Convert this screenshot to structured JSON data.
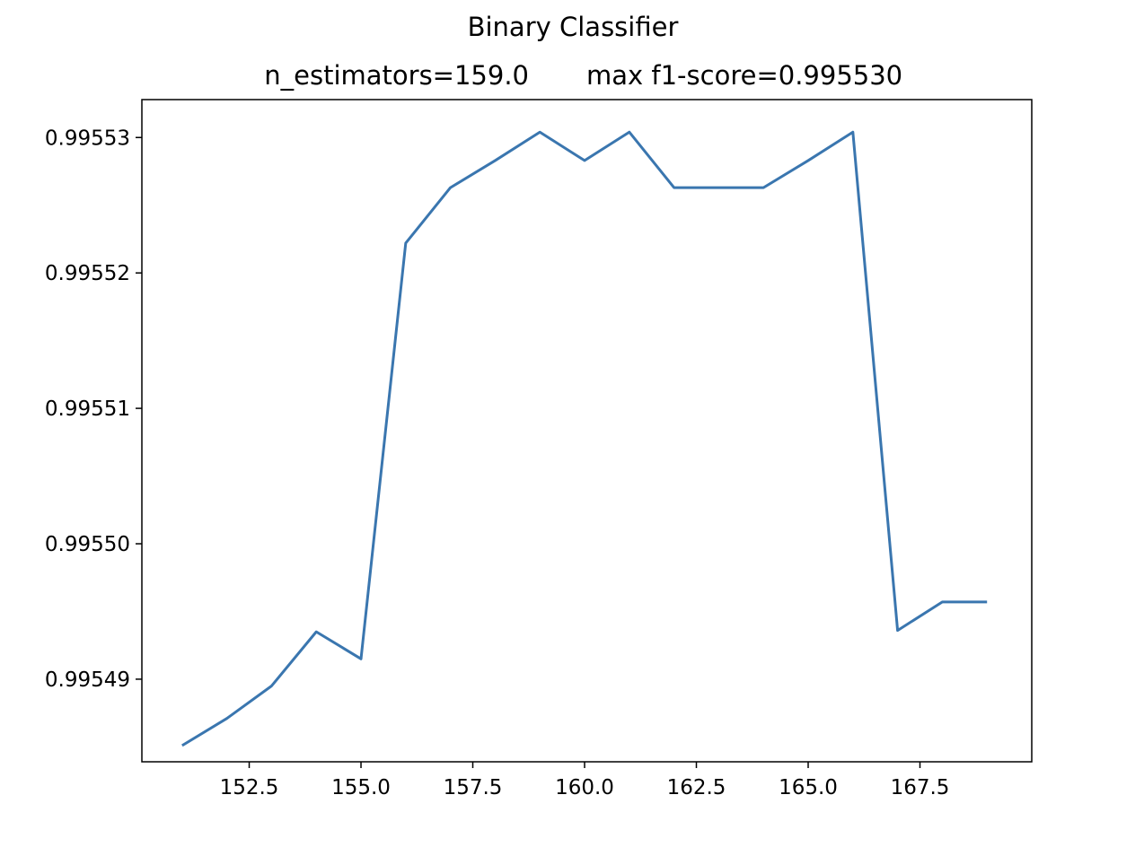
{
  "chart_data": {
    "type": "line",
    "title": "Binary Classifier",
    "subtitle_left": "n_estimators=159.0",
    "subtitle_right": "max f1-score=0.995530",
    "xlabel": "",
    "ylabel": "",
    "xlim": [
      150.1,
      170.0
    ],
    "ylim": [
      0.9954839,
      0.9955328
    ],
    "x_ticks": [
      152.5,
      155.0,
      157.5,
      160.0,
      162.5,
      165.0,
      167.5
    ],
    "x_tick_labels": [
      "152.5",
      "155.0",
      "157.5",
      "160.0",
      "162.5",
      "165.0",
      "167.5"
    ],
    "y_ticks": [
      0.99549,
      0.9955,
      0.99551,
      0.99552,
      0.99553
    ],
    "y_tick_labels": [
      "0.99549",
      "0.99550",
      "0.99551",
      "0.99552",
      "0.99553"
    ],
    "grid": false,
    "series": [
      {
        "color": "#3a76af",
        "x": [
          151,
          152,
          153,
          154,
          155,
          156,
          157,
          158,
          159,
          160,
          161,
          162,
          163,
          164,
          165,
          166,
          167,
          168,
          169
        ],
        "y": [
          0.9954851,
          0.9954871,
          0.9954895,
          0.9954935,
          0.9954915,
          0.9955222,
          0.9955263,
          0.9955283,
          0.9955304,
          0.9955283,
          0.9955304,
          0.9955263,
          0.9955263,
          0.9955263,
          0.9955283,
          0.9955304,
          0.9954936,
          0.9954957,
          0.9954957
        ]
      }
    ]
  }
}
